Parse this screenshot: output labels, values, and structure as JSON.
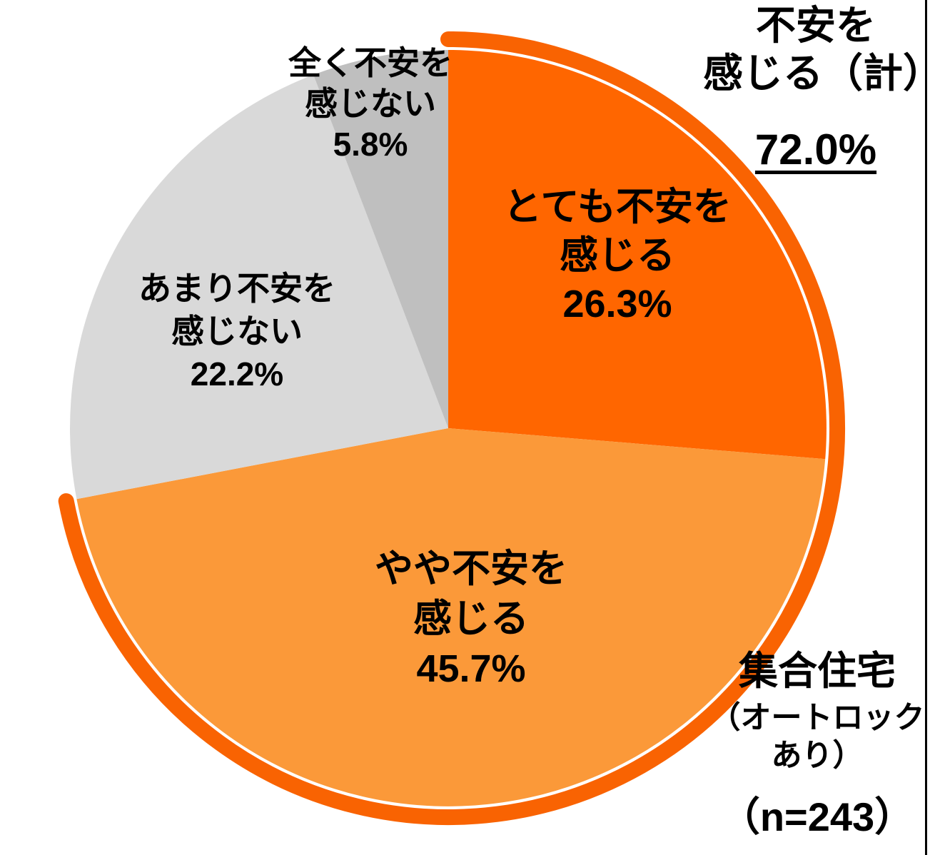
{
  "chart_data": {
    "type": "pie",
    "categories": [
      "とても不安を感じる",
      "やや不安を感じる",
      "あまり不安を感じない",
      "全く不安を感じない"
    ],
    "values": [
      26.3,
      45.7,
      22.2,
      5.8
    ],
    "colors": [
      "#FF6600",
      "#FB9939",
      "#D9D9D9",
      "#BFBFBF"
    ],
    "start_angle_deg": 0,
    "direction": "clockwise",
    "legend_position": "none",
    "highlight_arc": {
      "covers_percent": 72.0,
      "color": "#F96302",
      "meaning": "不安を感じる(計)"
    },
    "annotations": {
      "total_label": "不安を感じる（計）",
      "total_value": "72.0%",
      "group_label": "集合住宅（オートロックあり）",
      "sample_size": "n=243"
    }
  },
  "labels": {
    "very": {
      "lines": [
        "とても不安を",
        "感じる",
        "26.3%"
      ]
    },
    "somewhat": {
      "lines": [
        "やや不安を",
        "感じる",
        "45.7%"
      ]
    },
    "not_much": {
      "lines": [
        "あまり不安を",
        "感じない",
        "22.2%"
      ]
    },
    "not_at_all": {
      "lines": [
        "全く不安を",
        "感じない",
        "5.8%"
      ]
    },
    "total": {
      "line1": "不安を",
      "line2": "感じる（計）",
      "value": "72.0%"
    },
    "group": {
      "title": "集合住宅",
      "subtitle_line1": "（オートロック",
      "subtitle_line2": "あり）",
      "sample": "（n=243）"
    }
  }
}
